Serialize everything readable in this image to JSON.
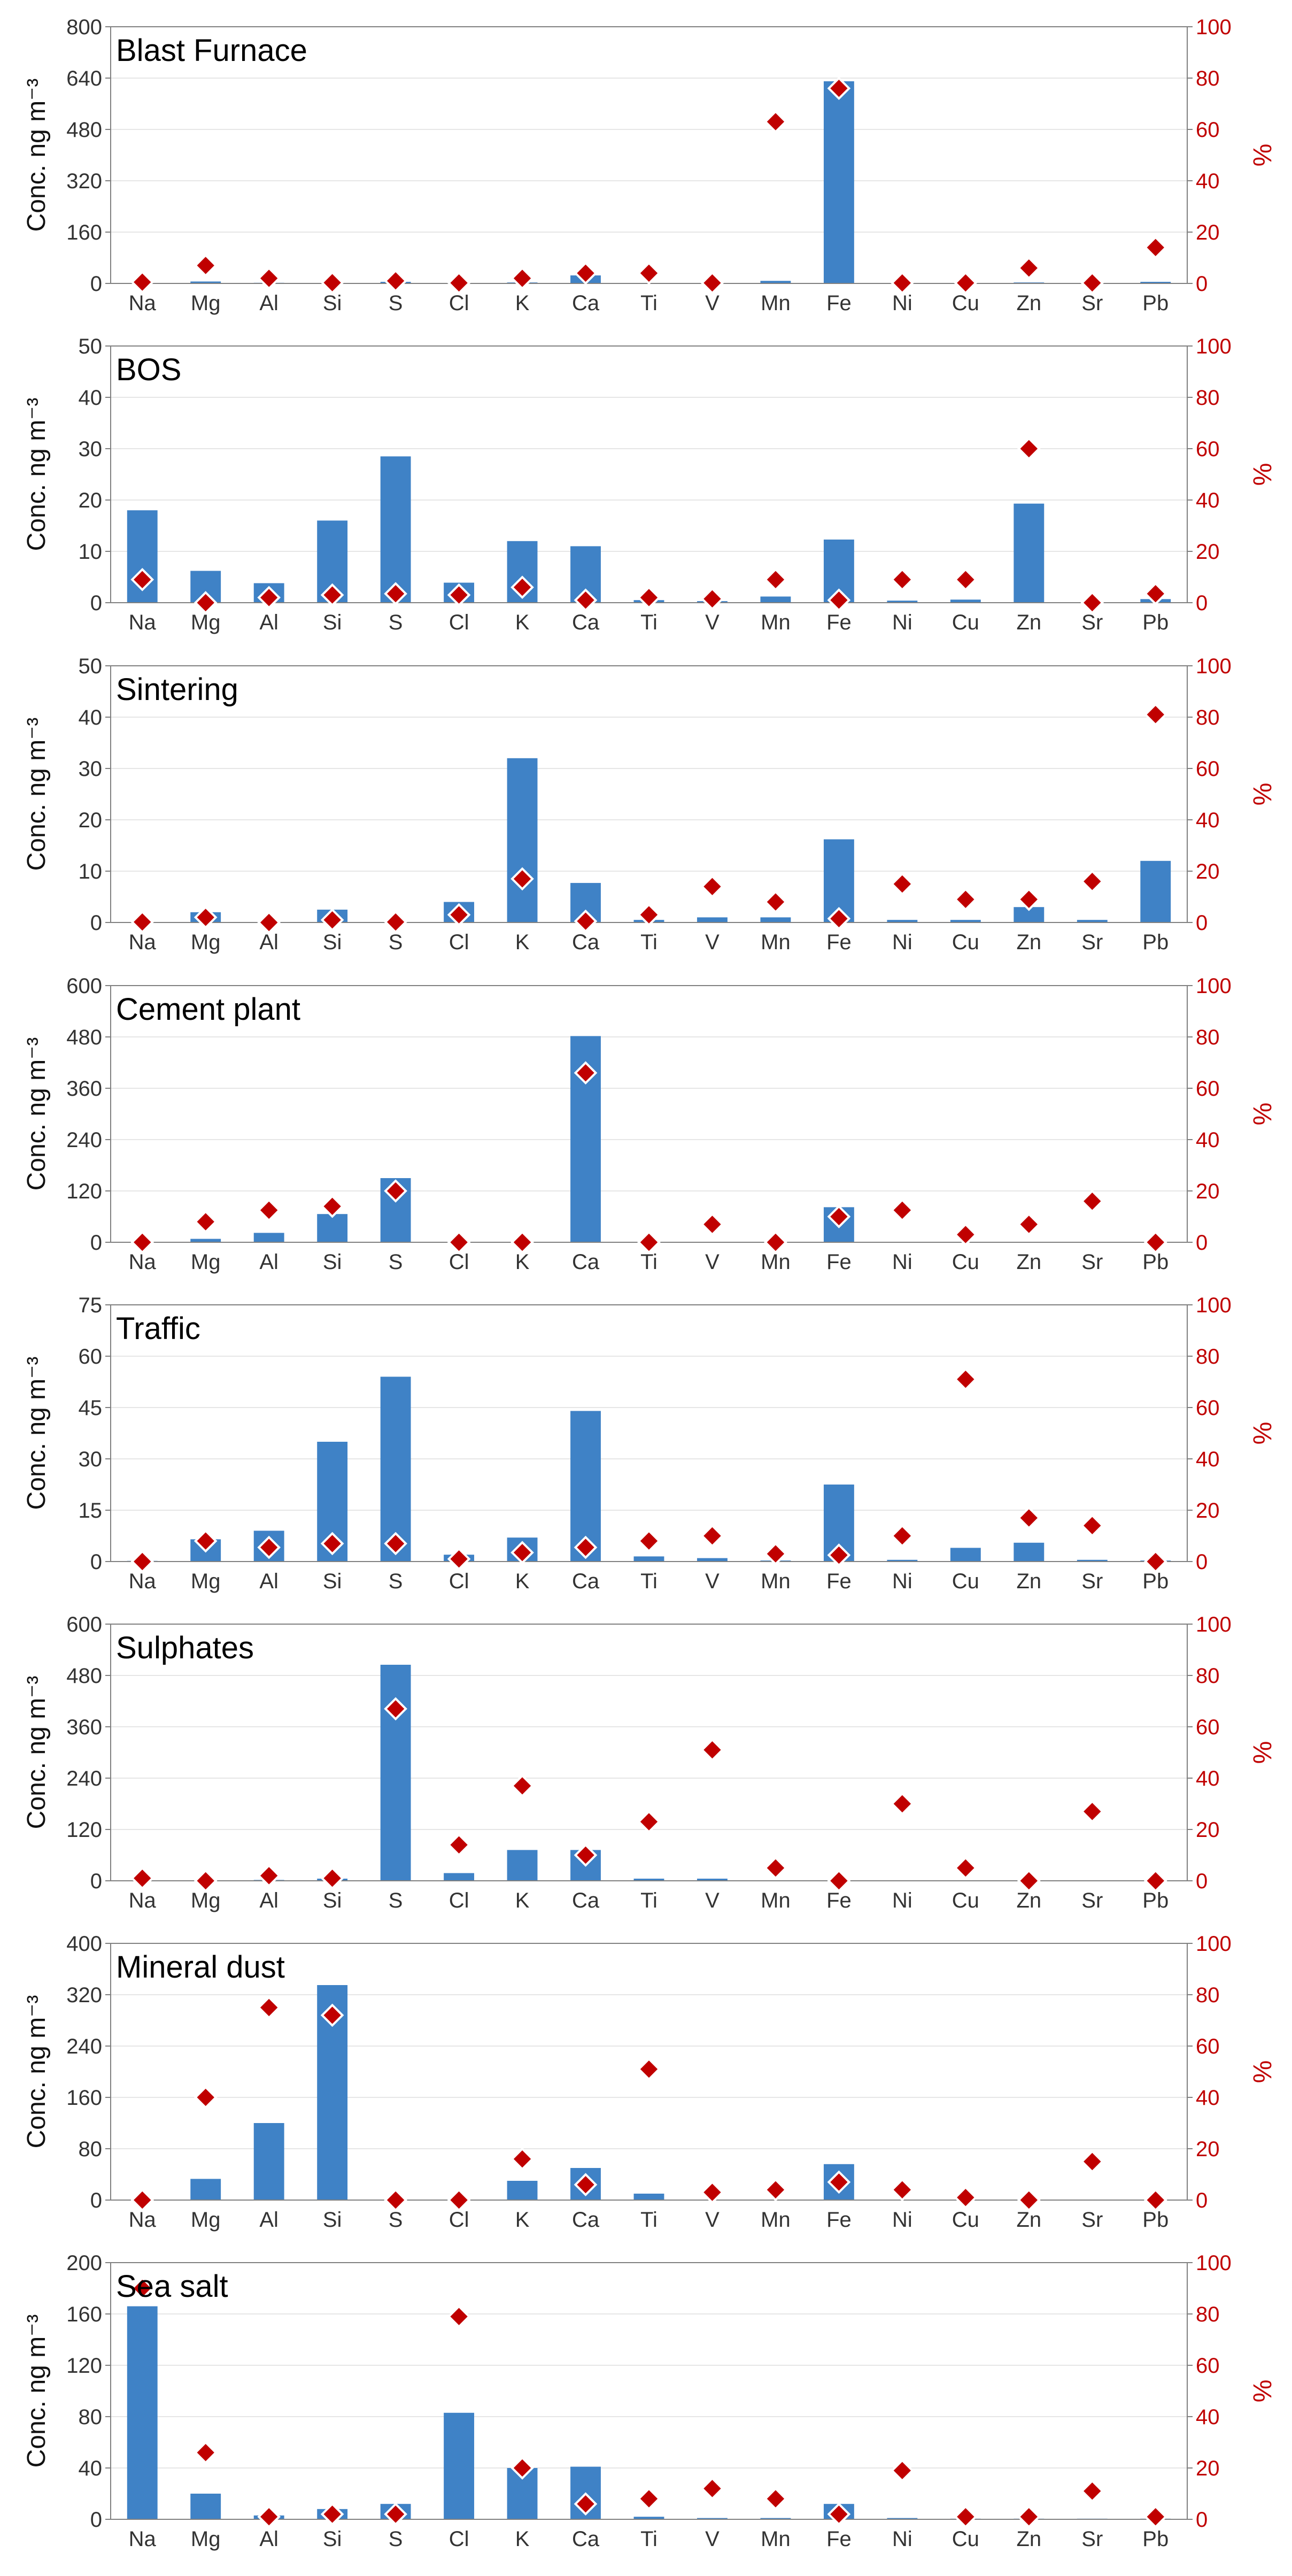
{
  "chart_data": [
    {
      "type": "bar",
      "title": "Blast Furnace",
      "ylabel": "Conc. ng m⁻³",
      "y2label": "%",
      "ylim": [
        0,
        800
      ],
      "yticks": [
        0,
        160,
        320,
        480,
        640,
        800
      ],
      "y2lim": [
        0,
        100
      ],
      "y2ticks": [
        0,
        20,
        40,
        60,
        80,
        100
      ],
      "categories": [
        "Na",
        "Mg",
        "Al",
        "Si",
        "S",
        "Cl",
        "K",
        "Ca",
        "Ti",
        "V",
        "Mn",
        "Fe",
        "Ni",
        "Cu",
        "Zn",
        "Sr",
        "Pb"
      ],
      "series": [
        {
          "axis": "left",
          "type": "bar",
          "values": [
            0.5,
            6,
            2,
            0.5,
            5,
            0.2,
            3,
            25,
            1,
            0.2,
            8,
            630,
            0.2,
            0.5,
            3,
            0.2,
            5
          ]
        },
        {
          "axis": "right",
          "type": "scatter",
          "values": [
            0.5,
            7,
            2,
            0.3,
            1,
            0.2,
            2,
            4,
            4,
            0.2,
            63,
            76,
            0.2,
            0.2,
            6,
            0.2,
            14
          ]
        }
      ]
    },
    {
      "type": "bar",
      "title": "BOS",
      "ylabel": "Conc. ng m⁻³",
      "y2label": "%",
      "ylim": [
        0,
        50
      ],
      "yticks": [
        0,
        10,
        20,
        30,
        40,
        50
      ],
      "y2lim": [
        0,
        100
      ],
      "y2ticks": [
        0,
        20,
        40,
        60,
        80,
        100
      ],
      "categories": [
        "Na",
        "Mg",
        "Al",
        "Si",
        "S",
        "Cl",
        "K",
        "Ca",
        "Ti",
        "V",
        "Mn",
        "Fe",
        "Ni",
        "Cu",
        "Zn",
        "Sr",
        "Pb"
      ],
      "series": [
        {
          "axis": "left",
          "type": "bar",
          "values": [
            18,
            6.2,
            3.8,
            16,
            28.5,
            3.9,
            12,
            11,
            0.5,
            0.3,
            1.2,
            12.3,
            0.4,
            0.6,
            19.3,
            0.1,
            0.7
          ]
        },
        {
          "axis": "right",
          "type": "scatter",
          "values": [
            9,
            0,
            2,
            3,
            3.5,
            3,
            6,
            1,
            2,
            1.5,
            9,
            1,
            9,
            9,
            60,
            0,
            3.5
          ]
        }
      ]
    },
    {
      "type": "bar",
      "title": "Sintering",
      "ylabel": "Conc. ng m⁻³",
      "y2label": "%",
      "ylim": [
        0,
        50
      ],
      "yticks": [
        0,
        10,
        20,
        30,
        40,
        50
      ],
      "y2lim": [
        0,
        100
      ],
      "y2ticks": [
        0,
        20,
        40,
        60,
        80,
        100
      ],
      "categories": [
        "Na",
        "Mg",
        "Al",
        "Si",
        "S",
        "Cl",
        "K",
        "Ca",
        "Ti",
        "V",
        "Mn",
        "Fe",
        "Ni",
        "Cu",
        "Zn",
        "Sr",
        "Pb"
      ],
      "series": [
        {
          "axis": "left",
          "type": "bar",
          "values": [
            0.1,
            2,
            0.1,
            2.5,
            0.1,
            4,
            32,
            7.7,
            0.5,
            1,
            1,
            16.2,
            0.5,
            0.5,
            3,
            0.5,
            12
          ]
        },
        {
          "axis": "right",
          "type": "scatter",
          "values": [
            0.2,
            2,
            0,
            1,
            0.2,
            3,
            17,
            0.5,
            3,
            14,
            8,
            1.5,
            15,
            9,
            9,
            16,
            81
          ]
        }
      ]
    },
    {
      "type": "bar",
      "title": "Cement plant",
      "ylabel": "Conc. ng m⁻³",
      "y2label": "%",
      "ylim": [
        0,
        600
      ],
      "yticks": [
        0,
        120,
        240,
        360,
        480,
        600
      ],
      "y2lim": [
        0,
        100
      ],
      "y2ticks": [
        0,
        20,
        40,
        60,
        80,
        100
      ],
      "categories": [
        "Na",
        "Mg",
        "Al",
        "Si",
        "S",
        "Cl",
        "K",
        "Ca",
        "Ti",
        "V",
        "Mn",
        "Fe",
        "Ni",
        "Cu",
        "Zn",
        "Sr",
        "Pb"
      ],
      "series": [
        {
          "axis": "left",
          "type": "bar",
          "values": [
            0.5,
            8,
            22,
            66,
            150,
            0.5,
            1,
            482,
            0.5,
            0.5,
            1,
            82,
            0.5,
            0.5,
            1,
            0.5,
            0.5
          ]
        },
        {
          "axis": "right",
          "type": "scatter",
          "values": [
            0,
            8,
            12.5,
            14,
            20,
            0,
            0,
            66,
            0,
            7,
            0,
            10,
            12.5,
            3,
            7,
            16,
            0
          ]
        }
      ]
    },
    {
      "type": "bar",
      "title": "Traffic",
      "ylabel": "Conc. ng m⁻³",
      "y2label": "%",
      "ylim": [
        0,
        75
      ],
      "yticks": [
        0,
        15,
        30,
        45,
        60,
        75
      ],
      "y2lim": [
        0,
        100
      ],
      "y2ticks": [
        0,
        20,
        40,
        60,
        80,
        100
      ],
      "categories": [
        "Na",
        "Mg",
        "Al",
        "Si",
        "S",
        "Cl",
        "K",
        "Ca",
        "Ti",
        "V",
        "Mn",
        "Fe",
        "Ni",
        "Cu",
        "Zn",
        "Sr",
        "Pb"
      ],
      "series": [
        {
          "axis": "left",
          "type": "bar",
          "values": [
            0.2,
            6.5,
            9,
            35,
            54,
            2,
            7,
            44,
            1.5,
            1,
            0.3,
            22.5,
            0.5,
            4,
            5.5,
            0.5,
            0.3
          ]
        },
        {
          "axis": "right",
          "type": "scatter",
          "values": [
            0,
            8,
            5.5,
            7,
            7,
            1,
            3.5,
            5.5,
            8,
            10,
            3,
            2.5,
            10,
            71,
            17,
            14,
            0
          ]
        }
      ]
    },
    {
      "type": "bar",
      "title": "Sulphates",
      "ylabel": "Conc. ng m⁻³",
      "y2label": "%",
      "ylim": [
        0,
        600
      ],
      "yticks": [
        0,
        120,
        240,
        360,
        480,
        600
      ],
      "y2lim": [
        0,
        100
      ],
      "y2ticks": [
        0,
        20,
        40,
        60,
        80,
        100
      ],
      "categories": [
        "Na",
        "Mg",
        "Al",
        "Si",
        "S",
        "Cl",
        "K",
        "Ca",
        "Ti",
        "V",
        "Mn",
        "Fe",
        "Ni",
        "Cu",
        "Zn",
        "Sr",
        "Pb"
      ],
      "series": [
        {
          "axis": "left",
          "type": "bar",
          "values": [
            0.5,
            0.5,
            2,
            5,
            505,
            18,
            72,
            72,
            5,
            5,
            0.5,
            0.5,
            0.5,
            0.5,
            0.5,
            0.5,
            0.5
          ]
        },
        {
          "axis": "right",
          "type": "scatter",
          "values": [
            1,
            0,
            2,
            1,
            67,
            14,
            37,
            10,
            23,
            51,
            5,
            0,
            30,
            5,
            0,
            27,
            0
          ]
        }
      ]
    },
    {
      "type": "bar",
      "title": "Mineral dust",
      "ylabel": "Conc. ng m⁻³",
      "y2label": "%",
      "ylim": [
        0,
        400
      ],
      "yticks": [
        0,
        80,
        160,
        240,
        320,
        400
      ],
      "y2lim": [
        0,
        100
      ],
      "y2ticks": [
        0,
        20,
        40,
        60,
        80,
        100
      ],
      "categories": [
        "Na",
        "Mg",
        "Al",
        "Si",
        "S",
        "Cl",
        "K",
        "Ca",
        "Ti",
        "V",
        "Mn",
        "Fe",
        "Ni",
        "Cu",
        "Zn",
        "Sr",
        "Pb"
      ],
      "series": [
        {
          "axis": "left",
          "type": "bar",
          "values": [
            0.5,
            33,
            120,
            335,
            0.5,
            0.5,
            30,
            50,
            10,
            0.5,
            0.5,
            56,
            0.5,
            0.5,
            0.5,
            0.5,
            0.5
          ]
        },
        {
          "axis": "right",
          "type": "scatter",
          "values": [
            0,
            40,
            75,
            72,
            0,
            0,
            16,
            6,
            51,
            3,
            4,
            7,
            4,
            1,
            0,
            15,
            0
          ]
        }
      ]
    },
    {
      "type": "bar",
      "title": "Sea salt",
      "ylabel": "Conc. ng m⁻³",
      "y2label": "%",
      "ylim": [
        0,
        200
      ],
      "yticks": [
        0,
        40,
        80,
        120,
        160,
        200
      ],
      "y2lim": [
        0,
        100
      ],
      "y2ticks": [
        0,
        20,
        40,
        60,
        80,
        100
      ],
      "categories": [
        "Na",
        "Mg",
        "Al",
        "Si",
        "S",
        "Cl",
        "K",
        "Ca",
        "Ti",
        "V",
        "Mn",
        "Fe",
        "Ni",
        "Cu",
        "Zn",
        "Sr",
        "Pb"
      ],
      "series": [
        {
          "axis": "left",
          "type": "bar",
          "values": [
            166,
            20,
            3,
            8,
            12,
            83,
            40,
            41,
            2,
            1,
            1,
            12,
            1,
            0.5,
            0.5,
            0.5,
            0.5
          ]
        },
        {
          "axis": "right",
          "type": "scatter",
          "values": [
            90,
            26,
            1,
            2,
            2,
            79,
            20,
            6,
            8,
            12,
            8,
            2,
            19,
            1,
            1,
            11,
            1
          ]
        }
      ]
    }
  ],
  "colors": {
    "bar": "#3f82c6",
    "marker": "#c00000",
    "marker_edge": "#ffffff",
    "right_axis": "#c00000",
    "grid": "#e6e6e6",
    "frame": "#808080"
  }
}
